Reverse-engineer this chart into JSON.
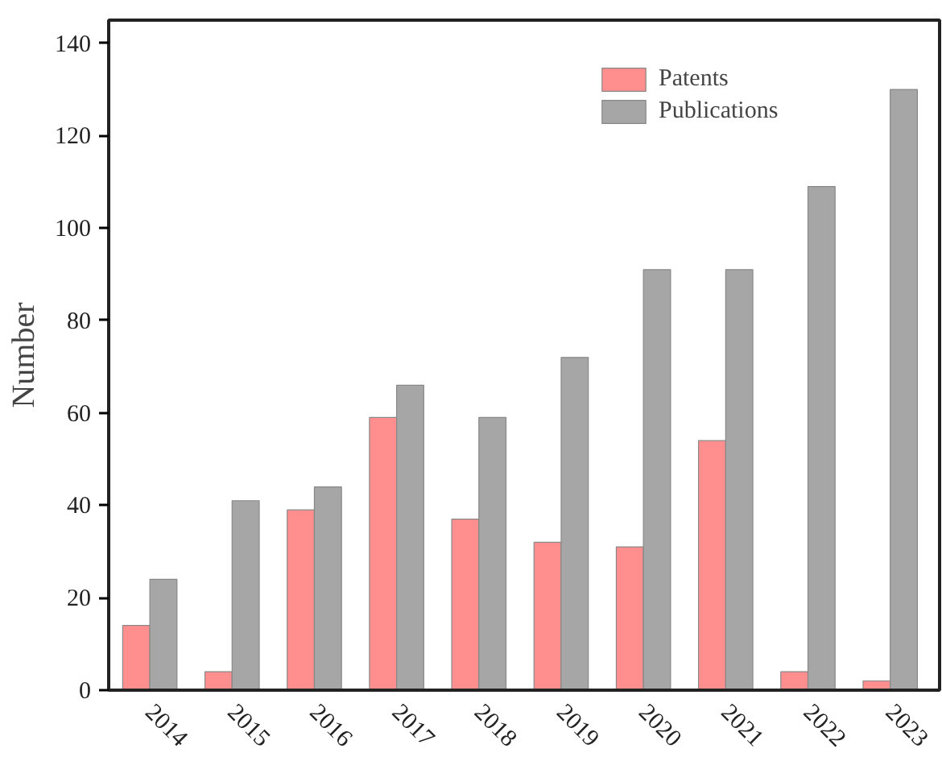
{
  "chart_data": {
    "type": "bar",
    "ylabel": "Number",
    "categories": [
      "2014",
      "2015",
      "2016",
      "2017",
      "2018",
      "2019",
      "2020",
      "2021",
      "2022",
      "2023"
    ],
    "series": [
      {
        "name": "Patents",
        "color": "#ff8f8f",
        "values": [
          14,
          4,
          39,
          59,
          37,
          32,
          31,
          54,
          4,
          2
        ]
      },
      {
        "name": "Publications",
        "color": "#a6a6a6",
        "values": [
          24,
          41,
          44,
          66,
          59,
          72,
          91,
          91,
          109,
          130
        ]
      }
    ],
    "ylim": [
      0,
      145
    ],
    "yticks": [
      0,
      20,
      40,
      60,
      80,
      100,
      120,
      140
    ],
    "grid": false,
    "legend": "top right"
  }
}
